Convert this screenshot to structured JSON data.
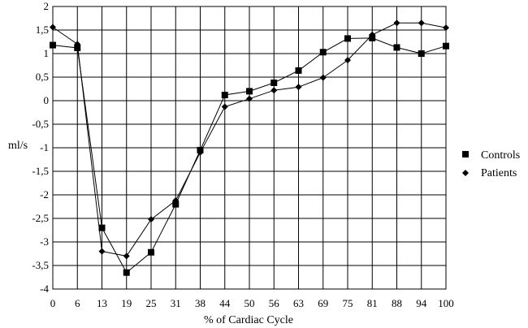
{
  "chart_data": {
    "type": "line",
    "title": "",
    "xlabel": "% of Cardiac Cycle",
    "ylabel": "ml/s",
    "categories": [
      "0",
      "6",
      "13",
      "19",
      "25",
      "31",
      "38",
      "44",
      "50",
      "56",
      "63",
      "69",
      "75",
      "81",
      "88",
      "94",
      "100"
    ],
    "ylim": [
      -4,
      2
    ],
    "yticks": [
      2,
      1.5,
      1,
      0.5,
      0,
      -0.5,
      -1,
      -1.5,
      -2,
      -2.5,
      -3,
      -3.5,
      -4
    ],
    "ytick_labels": [
      "2",
      "1,5",
      "1",
      "0,5",
      "0",
      "-0,5",
      "-1",
      "-1,5",
      "-2",
      "-2,5",
      "-3",
      "-3,5",
      "-4"
    ],
    "grid": true,
    "legend_position": "right",
    "series": [
      {
        "name": "Controls",
        "marker": "square",
        "values": [
          1.18,
          1.12,
          -2.7,
          -3.65,
          -3.22,
          -2.2,
          -1.05,
          0.12,
          0.2,
          0.38,
          0.64,
          1.03,
          1.32,
          1.33,
          1.13,
          1.0,
          1.16
        ]
      },
      {
        "name": "Patients",
        "marker": "diamond",
        "values": [
          1.56,
          1.2,
          -3.2,
          -3.3,
          -2.52,
          -2.12,
          -1.1,
          -0.13,
          0.04,
          0.22,
          0.29,
          0.49,
          0.86,
          1.4,
          1.65,
          1.65,
          1.55
        ]
      }
    ]
  }
}
